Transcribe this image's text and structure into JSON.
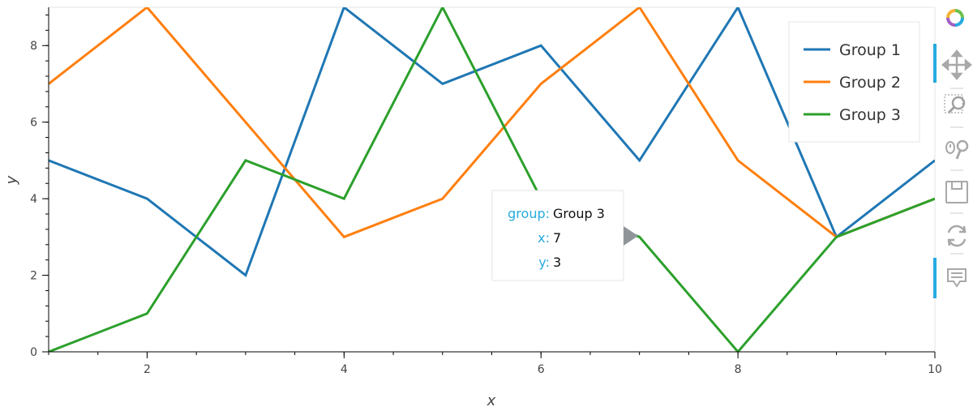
{
  "chart_data": {
    "type": "line",
    "x": [
      1,
      2,
      3,
      4,
      5,
      6,
      7,
      8,
      9,
      10
    ],
    "series": [
      {
        "name": "Group 1",
        "color": "#1f77b4",
        "values": [
          5,
          4,
          2,
          9,
          7,
          8,
          5,
          9,
          3,
          5
        ]
      },
      {
        "name": "Group 2",
        "color": "#ff7f0e",
        "values": [
          7,
          9,
          6,
          3,
          4,
          7,
          9,
          5,
          3,
          4
        ]
      },
      {
        "name": "Group 3",
        "color": "#2ca02c",
        "values": [
          0,
          1,
          5,
          4,
          9,
          4,
          3,
          0,
          3,
          4
        ]
      }
    ],
    "xlabel": "x",
    "ylabel": "y",
    "xlim": [
      1,
      10
    ],
    "ylim": [
      0,
      9
    ],
    "x_ticks": [
      "2",
      "4",
      "6",
      "8",
      "10"
    ],
    "y_ticks": [
      "0",
      "2",
      "4",
      "6",
      "8"
    ],
    "grid": false,
    "legend_placement": "top-right"
  },
  "tooltip": {
    "rows": [
      {
        "key": "group:",
        "value": "Group 3"
      },
      {
        "key": "x:",
        "value": "7"
      },
      {
        "key": "y:",
        "value": "3"
      }
    ]
  },
  "toolbar": {
    "tools": [
      "bokeh-logo-icon",
      "pan-icon",
      "box-zoom-icon",
      "wheel-zoom-icon",
      "save-icon",
      "reset-icon",
      "hover-icon"
    ]
  }
}
